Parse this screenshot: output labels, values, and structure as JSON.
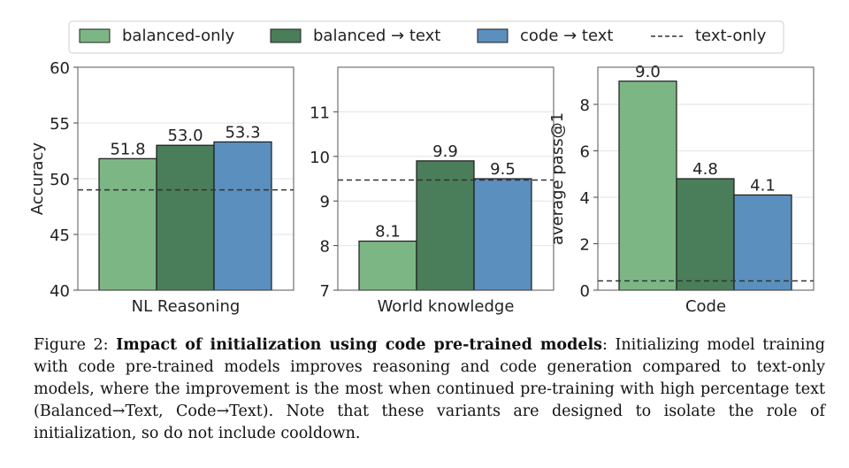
{
  "legend": [
    {
      "label": "balanced-only",
      "kind": "bar",
      "color": "#7cb685"
    },
    {
      "label": "balanced → text",
      "kind": "bar",
      "color": "#4a7d59"
    },
    {
      "label": "code → text",
      "kind": "bar",
      "color": "#5b8fbd"
    },
    {
      "label": "text-only",
      "kind": "line",
      "color": "#333333"
    }
  ],
  "chart_data": [
    {
      "type": "bar",
      "xlabel": "NL Reasoning",
      "ylabel": "Accuracy",
      "ylim": [
        40,
        60
      ],
      "yticks": [
        40,
        45,
        50,
        55,
        60
      ],
      "series": [
        {
          "name": "balanced-only",
          "values": [
            51.8
          ],
          "labels": [
            "51.8"
          ]
        },
        {
          "name": "balanced → text",
          "values": [
            53.0
          ],
          "labels": [
            "53.0"
          ]
        },
        {
          "name": "code → text",
          "values": [
            53.3
          ],
          "labels": [
            "53.3"
          ]
        }
      ],
      "baseline": {
        "name": "text-only",
        "value": 49.0
      }
    },
    {
      "type": "bar",
      "xlabel": "World knowledge",
      "ylabel": "",
      "ylim": [
        7,
        12
      ],
      "yticks": [
        7,
        8,
        9,
        10,
        11
      ],
      "series": [
        {
          "name": "balanced-only",
          "values": [
            8.1
          ],
          "labels": [
            "8.1"
          ]
        },
        {
          "name": "balanced → text",
          "values": [
            9.9
          ],
          "labels": [
            "9.9"
          ]
        },
        {
          "name": "code → text",
          "values": [
            9.5
          ],
          "labels": [
            "9.5"
          ]
        }
      ],
      "baseline": {
        "name": "text-only",
        "value": 9.47
      }
    },
    {
      "type": "bar",
      "xlabel": "Code",
      "ylabel": "average pass@1",
      "ylim": [
        0,
        9.6
      ],
      "yticks": [
        0,
        2,
        4,
        6,
        8
      ],
      "series": [
        {
          "name": "balanced-only",
          "values": [
            9.0
          ],
          "labels": [
            "9.0"
          ]
        },
        {
          "name": "balanced → text",
          "values": [
            4.8
          ],
          "labels": [
            "4.8"
          ]
        },
        {
          "name": "code → text",
          "values": [
            4.1
          ],
          "labels": [
            "4.1"
          ]
        }
      ],
      "baseline": {
        "name": "text-only",
        "value": 0.4
      }
    }
  ],
  "caption": {
    "prefix": "Figure 2: ",
    "bold": "Impact of initialization using code pre-trained models",
    "body": ": Initializing model training with code pre-trained models improves reasoning and code generation compared to text-only models, where the improvement is the most when continued pre-training with high percentage text (Balanced→Text, Code→Text). Note that these variants are designed to isolate the role of initialization, so do not include cooldown."
  }
}
